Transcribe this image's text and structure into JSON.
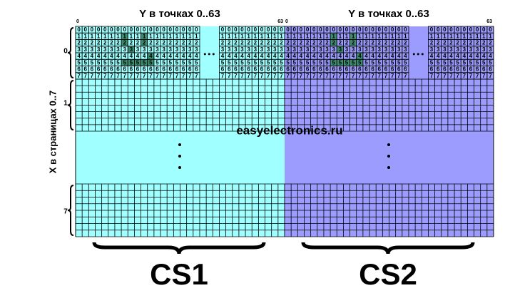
{
  "panels": [
    {
      "title": "Y в точках 0..63",
      "y_start": "0",
      "y_end": "63",
      "chip": "CS1"
    },
    {
      "title": "Y в точках 0..63",
      "y_start": "0",
      "y_end": "63",
      "chip": "CS2"
    }
  ],
  "x_title": "X в страницах 0..7",
  "pages": [
    "0",
    "1",
    "7"
  ],
  "rows": [
    "0",
    "1",
    "2",
    "3",
    "4",
    "5",
    "6",
    "7"
  ],
  "watermark": "easyelectronics.ru"
}
